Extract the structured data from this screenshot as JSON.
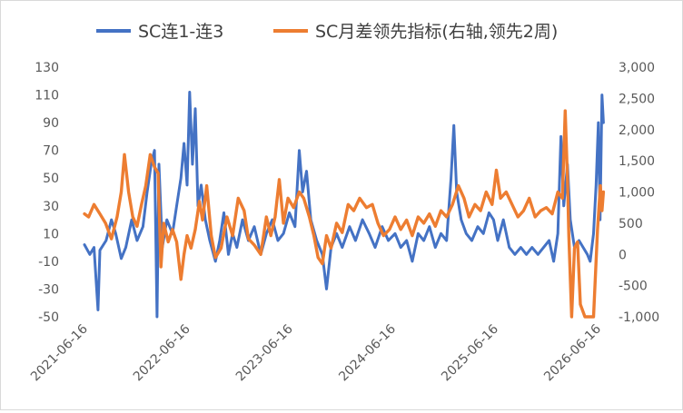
{
  "chart_data": {
    "type": "line",
    "legend_position": "top",
    "grid": false,
    "series": [
      {
        "name": "SC连1-连3",
        "axis": "left",
        "color": "#4472C4",
        "points": [
          [
            "2021-06-16",
            2
          ],
          [
            "2021-07-05",
            -5
          ],
          [
            "2021-07-20",
            0
          ],
          [
            "2021-08-03",
            -45
          ],
          [
            "2021-08-10",
            -2
          ],
          [
            "2021-09-01",
            5
          ],
          [
            "2021-09-20",
            20
          ],
          [
            "2021-10-05",
            10
          ],
          [
            "2021-10-25",
            -8
          ],
          [
            "2021-11-10",
            0
          ],
          [
            "2021-12-01",
            20
          ],
          [
            "2021-12-20",
            5
          ],
          [
            "2022-01-10",
            15
          ],
          [
            "2022-01-25",
            40
          ],
          [
            "2022-02-08",
            60
          ],
          [
            "2022-02-20",
            70
          ],
          [
            "2022-03-01",
            -50
          ],
          [
            "2022-03-08",
            60
          ],
          [
            "2022-03-20",
            0
          ],
          [
            "2022-04-05",
            20
          ],
          [
            "2022-04-25",
            10
          ],
          [
            "2022-05-10",
            30
          ],
          [
            "2022-05-25",
            50
          ],
          [
            "2022-06-05",
            75
          ],
          [
            "2022-06-16",
            45
          ],
          [
            "2022-06-25",
            112
          ],
          [
            "2022-07-05",
            60
          ],
          [
            "2022-07-15",
            100
          ],
          [
            "2022-07-25",
            30
          ],
          [
            "2022-08-05",
            45
          ],
          [
            "2022-08-20",
            20
          ],
          [
            "2022-09-05",
            5
          ],
          [
            "2022-09-25",
            -10
          ],
          [
            "2022-10-10",
            5
          ],
          [
            "2022-10-25",
            25
          ],
          [
            "2022-11-10",
            -5
          ],
          [
            "2022-11-25",
            10
          ],
          [
            "2022-12-10",
            0
          ],
          [
            "2022-12-30",
            20
          ],
          [
            "2023-01-20",
            5
          ],
          [
            "2023-02-10",
            15
          ],
          [
            "2023-03-05",
            -5
          ],
          [
            "2023-03-25",
            10
          ],
          [
            "2023-04-15",
            20
          ],
          [
            "2023-05-05",
            5
          ],
          [
            "2023-05-25",
            10
          ],
          [
            "2023-06-15",
            25
          ],
          [
            "2023-07-05",
            15
          ],
          [
            "2023-07-20",
            70
          ],
          [
            "2023-08-01",
            40
          ],
          [
            "2023-08-15",
            55
          ],
          [
            "2023-08-30",
            20
          ],
          [
            "2023-09-20",
            5
          ],
          [
            "2023-10-10",
            -5
          ],
          [
            "2023-10-25",
            -30
          ],
          [
            "2023-11-10",
            0
          ],
          [
            "2023-11-30",
            10
          ],
          [
            "2023-12-20",
            0
          ],
          [
            "2024-01-15",
            15
          ],
          [
            "2024-02-05",
            5
          ],
          [
            "2024-03-01",
            20
          ],
          [
            "2024-03-25",
            10
          ],
          [
            "2024-04-15",
            0
          ],
          [
            "2024-05-10",
            15
          ],
          [
            "2024-06-01",
            5
          ],
          [
            "2024-06-25",
            10
          ],
          [
            "2024-07-15",
            0
          ],
          [
            "2024-08-05",
            5
          ],
          [
            "2024-08-25",
            -10
          ],
          [
            "2024-09-15",
            10
          ],
          [
            "2024-10-05",
            5
          ],
          [
            "2024-10-25",
            15
          ],
          [
            "2024-11-15",
            0
          ],
          [
            "2024-12-05",
            10
          ],
          [
            "2024-12-25",
            5
          ],
          [
            "2025-01-10",
            50
          ],
          [
            "2025-01-20",
            88
          ],
          [
            "2025-01-30",
            40
          ],
          [
            "2025-02-15",
            20
          ],
          [
            "2025-03-05",
            10
          ],
          [
            "2025-03-25",
            5
          ],
          [
            "2025-04-15",
            15
          ],
          [
            "2025-05-05",
            10
          ],
          [
            "2025-05-25",
            25
          ],
          [
            "2025-06-10",
            20
          ],
          [
            "2025-06-25",
            5
          ],
          [
            "2025-07-15",
            20
          ],
          [
            "2025-08-05",
            0
          ],
          [
            "2025-08-25",
            -5
          ],
          [
            "2025-09-15",
            0
          ],
          [
            "2025-10-05",
            -5
          ],
          [
            "2025-10-25",
            0
          ],
          [
            "2025-11-15",
            -5
          ],
          [
            "2025-12-05",
            0
          ],
          [
            "2025-12-25",
            5
          ],
          [
            "2026-01-10",
            -10
          ],
          [
            "2026-01-25",
            10
          ],
          [
            "2026-02-05",
            80
          ],
          [
            "2026-02-15",
            30
          ],
          [
            "2026-02-28",
            60
          ],
          [
            "2026-03-10",
            20
          ],
          [
            "2026-03-25",
            0
          ],
          [
            "2026-04-10",
            5
          ],
          [
            "2026-04-25",
            0
          ],
          [
            "2026-05-10",
            -5
          ],
          [
            "2026-05-20",
            -10
          ],
          [
            "2026-06-01",
            10
          ],
          [
            "2026-06-10",
            45
          ],
          [
            "2026-06-18",
            90
          ],
          [
            "2026-06-24",
            20
          ],
          [
            "2026-07-01",
            110
          ],
          [
            "2026-07-06",
            90
          ]
        ]
      },
      {
        "name": "SC月差领先指标(右轴,领先2周)",
        "axis": "right",
        "color": "#ED7D31",
        "points": [
          [
            "2021-06-16",
            650
          ],
          [
            "2021-07-01",
            600
          ],
          [
            "2021-07-20",
            800
          ],
          [
            "2021-08-10",
            650
          ],
          [
            "2021-08-30",
            500
          ],
          [
            "2021-09-20",
            250
          ],
          [
            "2021-10-10",
            600
          ],
          [
            "2021-10-25",
            1000
          ],
          [
            "2021-11-05",
            1600
          ],
          [
            "2021-11-20",
            1000
          ],
          [
            "2021-12-05",
            600
          ],
          [
            "2021-12-20",
            450
          ],
          [
            "2022-01-05",
            800
          ],
          [
            "2022-01-20",
            1100
          ],
          [
            "2022-02-05",
            1600
          ],
          [
            "2022-02-20",
            1400
          ],
          [
            "2022-03-05",
            1300
          ],
          [
            "2022-03-15",
            -200
          ],
          [
            "2022-03-25",
            500
          ],
          [
            "2022-04-10",
            200
          ],
          [
            "2022-04-25",
            400
          ],
          [
            "2022-05-10",
            200
          ],
          [
            "2022-05-25",
            -400
          ],
          [
            "2022-06-05",
            0
          ],
          [
            "2022-06-16",
            300
          ],
          [
            "2022-06-30",
            100
          ],
          [
            "2022-07-15",
            400
          ],
          [
            "2022-07-30",
            850
          ],
          [
            "2022-08-10",
            550
          ],
          [
            "2022-08-25",
            1100
          ],
          [
            "2022-09-10",
            300
          ],
          [
            "2022-09-25",
            -50
          ],
          [
            "2022-10-15",
            100
          ],
          [
            "2022-11-05",
            600
          ],
          [
            "2022-11-25",
            300
          ],
          [
            "2022-12-15",
            900
          ],
          [
            "2023-01-05",
            700
          ],
          [
            "2023-01-20",
            250
          ],
          [
            "2023-02-10",
            150
          ],
          [
            "2023-03-05",
            0
          ],
          [
            "2023-03-25",
            600
          ],
          [
            "2023-04-10",
            300
          ],
          [
            "2023-04-25",
            600
          ],
          [
            "2023-05-10",
            1200
          ],
          [
            "2023-05-25",
            500
          ],
          [
            "2023-06-10",
            900
          ],
          [
            "2023-06-30",
            750
          ],
          [
            "2023-07-20",
            1000
          ],
          [
            "2023-08-05",
            900
          ],
          [
            "2023-08-25",
            600
          ],
          [
            "2023-09-10",
            300
          ],
          [
            "2023-09-25",
            -50
          ],
          [
            "2023-10-10",
            -150
          ],
          [
            "2023-10-25",
            300
          ],
          [
            "2023-11-10",
            100
          ],
          [
            "2023-11-30",
            500
          ],
          [
            "2023-12-20",
            350
          ],
          [
            "2024-01-10",
            800
          ],
          [
            "2024-01-30",
            700
          ],
          [
            "2024-02-20",
            900
          ],
          [
            "2024-03-15",
            750
          ],
          [
            "2024-04-05",
            800
          ],
          [
            "2024-04-25",
            500
          ],
          [
            "2024-05-15",
            300
          ],
          [
            "2024-06-05",
            400
          ],
          [
            "2024-06-25",
            600
          ],
          [
            "2024-07-15",
            400
          ],
          [
            "2024-08-05",
            550
          ],
          [
            "2024-08-25",
            300
          ],
          [
            "2024-09-15",
            600
          ],
          [
            "2024-10-05",
            500
          ],
          [
            "2024-10-25",
            650
          ],
          [
            "2024-11-15",
            450
          ],
          [
            "2024-12-05",
            700
          ],
          [
            "2024-12-25",
            600
          ],
          [
            "2025-01-15",
            800
          ],
          [
            "2025-02-05",
            1100
          ],
          [
            "2025-02-25",
            900
          ],
          [
            "2025-03-15",
            600
          ],
          [
            "2025-04-05",
            800
          ],
          [
            "2025-04-25",
            700
          ],
          [
            "2025-05-15",
            1000
          ],
          [
            "2025-06-05",
            800
          ],
          [
            "2025-06-20",
            1350
          ],
          [
            "2025-07-05",
            900
          ],
          [
            "2025-07-25",
            1000
          ],
          [
            "2025-08-15",
            800
          ],
          [
            "2025-09-05",
            600
          ],
          [
            "2025-09-25",
            700
          ],
          [
            "2025-10-15",
            900
          ],
          [
            "2025-11-05",
            600
          ],
          [
            "2025-11-25",
            700
          ],
          [
            "2025-12-15",
            750
          ],
          [
            "2026-01-05",
            650
          ],
          [
            "2026-01-25",
            1000
          ],
          [
            "2026-02-10",
            900
          ],
          [
            "2026-02-20",
            2300
          ],
          [
            "2026-02-28",
            1200
          ],
          [
            "2026-03-05",
            300
          ],
          [
            "2026-03-15",
            -1000
          ],
          [
            "2026-03-25",
            100
          ],
          [
            "2026-04-05",
            200
          ],
          [
            "2026-04-15",
            -800
          ],
          [
            "2026-05-01",
            -1000
          ],
          [
            "2026-05-15",
            -1000
          ],
          [
            "2026-06-01",
            -1000
          ],
          [
            "2026-06-15",
            400
          ],
          [
            "2026-06-25",
            1100
          ],
          [
            "2026-07-01",
            700
          ],
          [
            "2026-07-06",
            1000
          ]
        ]
      }
    ],
    "y_left": {
      "min": -50,
      "max": 130,
      "ticks": [
        -50,
        -30,
        -10,
        10,
        30,
        50,
        70,
        90,
        110,
        130
      ],
      "tick_labels": [
        "-50",
        "-30",
        "-10",
        "10",
        "30",
        "50",
        "70",
        "90",
        "110",
        "130"
      ]
    },
    "y_right": {
      "min": -1000,
      "max": 3000,
      "ticks": [
        -1000,
        -500,
        0,
        500,
        1000,
        1500,
        2000,
        2500,
        3000
      ],
      "tick_labels": [
        "-1,000",
        "-500",
        "0",
        "500",
        "1,000",
        "1,500",
        "2,000",
        "2,500",
        "3,000"
      ]
    },
    "x": {
      "min": "2021-06-16",
      "max": "2026-07-08",
      "tick_labels": [
        "2021-06-16",
        "2022-06-16",
        "2023-06-16",
        "2024-06-16",
        "2025-06-16",
        "2026-06-16"
      ]
    }
  }
}
